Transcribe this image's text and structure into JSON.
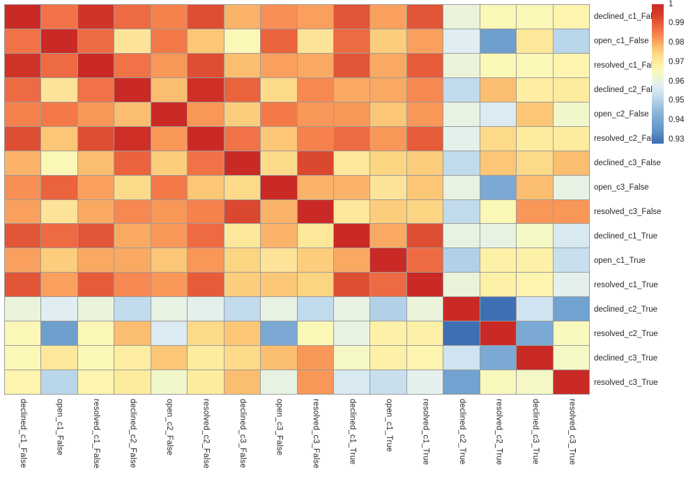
{
  "chart_data": {
    "type": "heatmap",
    "title": "",
    "legend_position": "right-colorbar",
    "grid": "on",
    "labels": [
      "declined_c1_False",
      "open_c1_False",
      "resolved_c1_False",
      "declined_c2_False",
      "open_c2_False",
      "resolved_c2_False",
      "declined_c3_False",
      "open_c3_False",
      "resolved_c3_False",
      "declined_c1_True",
      "open_c1_True",
      "resolved_c1_True",
      "declined_c2_True",
      "resolved_c2_True",
      "declined_c3_True",
      "resolved_c3_True"
    ],
    "x_labels": [
      "declined_c1_False",
      "open_c1_False",
      "resolved_c1_False",
      "declined_c2_False",
      "open_c2_False",
      "resolved_c2_False",
      "declined_c3_False",
      "open_c3_False",
      "resolved_c3_False",
      "declined_c1_True",
      "open_c1_True",
      "resolved_c1_True",
      "declined_c2_True",
      "resolved_c2_True",
      "declined_c3_True",
      "resolved_c3_True"
    ],
    "y_labels": [
      "declined_c1_False",
      "open_c1_False",
      "resolved_c1_False",
      "declined_c2_False",
      "open_c2_False",
      "resolved_c2_False",
      "declined_c3_False",
      "open_c3_False",
      "resolved_c3_False",
      "declined_c1_True",
      "open_c1_True",
      "resolved_c1_True",
      "declined_c2_True",
      "resolved_c2_True",
      "declined_c3_True",
      "resolved_c3_True"
    ],
    "matrix": [
      [
        1.0,
        0.987,
        0.997,
        0.988,
        0.985,
        0.992,
        0.979,
        0.983,
        0.981,
        0.991,
        0.981,
        0.991,
        0.961,
        0.966,
        0.966,
        0.967
      ],
      [
        0.987,
        1.0,
        0.988,
        0.972,
        0.986,
        0.977,
        0.966,
        0.989,
        0.972,
        0.988,
        0.976,
        0.981,
        0.958,
        0.938,
        0.971,
        0.951
      ],
      [
        0.997,
        0.988,
        1.0,
        0.987,
        0.982,
        0.992,
        0.978,
        0.981,
        0.98,
        0.991,
        0.98,
        0.99,
        0.961,
        0.966,
        0.966,
        0.967
      ],
      [
        0.988,
        0.972,
        0.987,
        1.0,
        0.978,
        0.998,
        0.989,
        0.974,
        0.984,
        0.98,
        0.98,
        0.984,
        0.952,
        0.978,
        0.969,
        0.97
      ],
      [
        0.985,
        0.986,
        0.982,
        0.978,
        1.0,
        0.982,
        0.976,
        0.986,
        0.982,
        0.982,
        0.977,
        0.982,
        0.96,
        0.957,
        0.977,
        0.963
      ],
      [
        0.992,
        0.977,
        0.992,
        0.998,
        0.982,
        1.0,
        0.987,
        0.977,
        0.985,
        0.988,
        0.982,
        0.99,
        0.959,
        0.974,
        0.97,
        0.97
      ],
      [
        0.979,
        0.966,
        0.978,
        0.989,
        0.976,
        0.987,
        1.0,
        0.974,
        0.993,
        0.971,
        0.975,
        0.976,
        0.952,
        0.977,
        0.974,
        0.978
      ],
      [
        0.983,
        0.989,
        0.981,
        0.974,
        0.986,
        0.977,
        0.974,
        1.0,
        0.979,
        0.979,
        0.972,
        0.977,
        0.96,
        0.941,
        0.978,
        0.96
      ],
      [
        0.981,
        0.972,
        0.98,
        0.984,
        0.982,
        0.985,
        0.993,
        0.979,
        1.0,
        0.971,
        0.976,
        0.975,
        0.952,
        0.966,
        0.982,
        0.982
      ],
      [
        0.991,
        0.988,
        0.991,
        0.98,
        0.982,
        0.988,
        0.971,
        0.979,
        0.971,
        1.0,
        0.98,
        0.992,
        0.96,
        0.96,
        0.964,
        0.956
      ],
      [
        0.981,
        0.976,
        0.98,
        0.98,
        0.977,
        0.982,
        0.975,
        0.972,
        0.976,
        0.98,
        1.0,
        0.988,
        0.95,
        0.968,
        0.968,
        0.953
      ],
      [
        0.991,
        0.981,
        0.99,
        0.984,
        0.982,
        0.99,
        0.976,
        0.977,
        0.975,
        0.992,
        0.988,
        1.0,
        0.961,
        0.968,
        0.967,
        0.959
      ],
      [
        0.961,
        0.958,
        0.961,
        0.952,
        0.96,
        0.959,
        0.952,
        0.96,
        0.952,
        0.96,
        0.95,
        0.961,
        1.0,
        0.928,
        0.954,
        0.939
      ],
      [
        0.966,
        0.938,
        0.966,
        0.978,
        0.957,
        0.974,
        0.977,
        0.941,
        0.966,
        0.96,
        0.968,
        0.968,
        0.928,
        1.0,
        0.941,
        0.965
      ],
      [
        0.966,
        0.971,
        0.966,
        0.969,
        0.977,
        0.97,
        0.974,
        0.978,
        0.982,
        0.964,
        0.968,
        0.967,
        0.954,
        0.941,
        1.0,
        0.964
      ],
      [
        0.967,
        0.951,
        0.967,
        0.97,
        0.963,
        0.97,
        0.978,
        0.96,
        0.982,
        0.956,
        0.953,
        0.959,
        0.939,
        0.965,
        0.964,
        1.0
      ]
    ],
    "vmin": 0.928,
    "vmax": 1.0,
    "grid_color": "#9b9b9b",
    "colorscale": [
      [
        0.9275,
        "#3c6cb1"
      ],
      [
        0.935,
        "#6095c8"
      ],
      [
        0.9405,
        "#79a7d2"
      ],
      [
        0.9455,
        "#94bbdd"
      ],
      [
        0.95,
        "#b2d1e8"
      ],
      [
        0.954,
        "#cfe3f0"
      ],
      [
        0.958,
        "#e0eef3"
      ],
      [
        0.9605,
        "#e9f3df"
      ],
      [
        0.963,
        "#f2f6cb"
      ],
      [
        0.9655,
        "#faf8ba"
      ],
      [
        0.9675,
        "#fdf3ab"
      ],
      [
        0.97,
        "#fdeb9e"
      ],
      [
        0.9725,
        "#fde195"
      ],
      [
        0.975,
        "#fcd583"
      ],
      [
        0.9775,
        "#fbc272"
      ],
      [
        0.98,
        "#faa963"
      ],
      [
        0.9825,
        "#f99357"
      ],
      [
        0.985,
        "#f5814d"
      ],
      [
        0.9875,
        "#f06e44"
      ],
      [
        0.99,
        "#e65c39"
      ],
      [
        0.9925,
        "#dc4b31"
      ],
      [
        0.995,
        "#d43a2a"
      ],
      [
        1.0,
        "#ca2a25"
      ]
    ],
    "colorbar": {
      "ticks": [
        "1",
        "0.99",
        "0.98",
        "0.97",
        "0.96",
        "0.95",
        "0.94",
        "0.93"
      ],
      "tick_values": [
        1,
        0.99,
        0.98,
        0.97,
        0.96,
        0.95,
        0.94,
        0.93
      ]
    }
  }
}
